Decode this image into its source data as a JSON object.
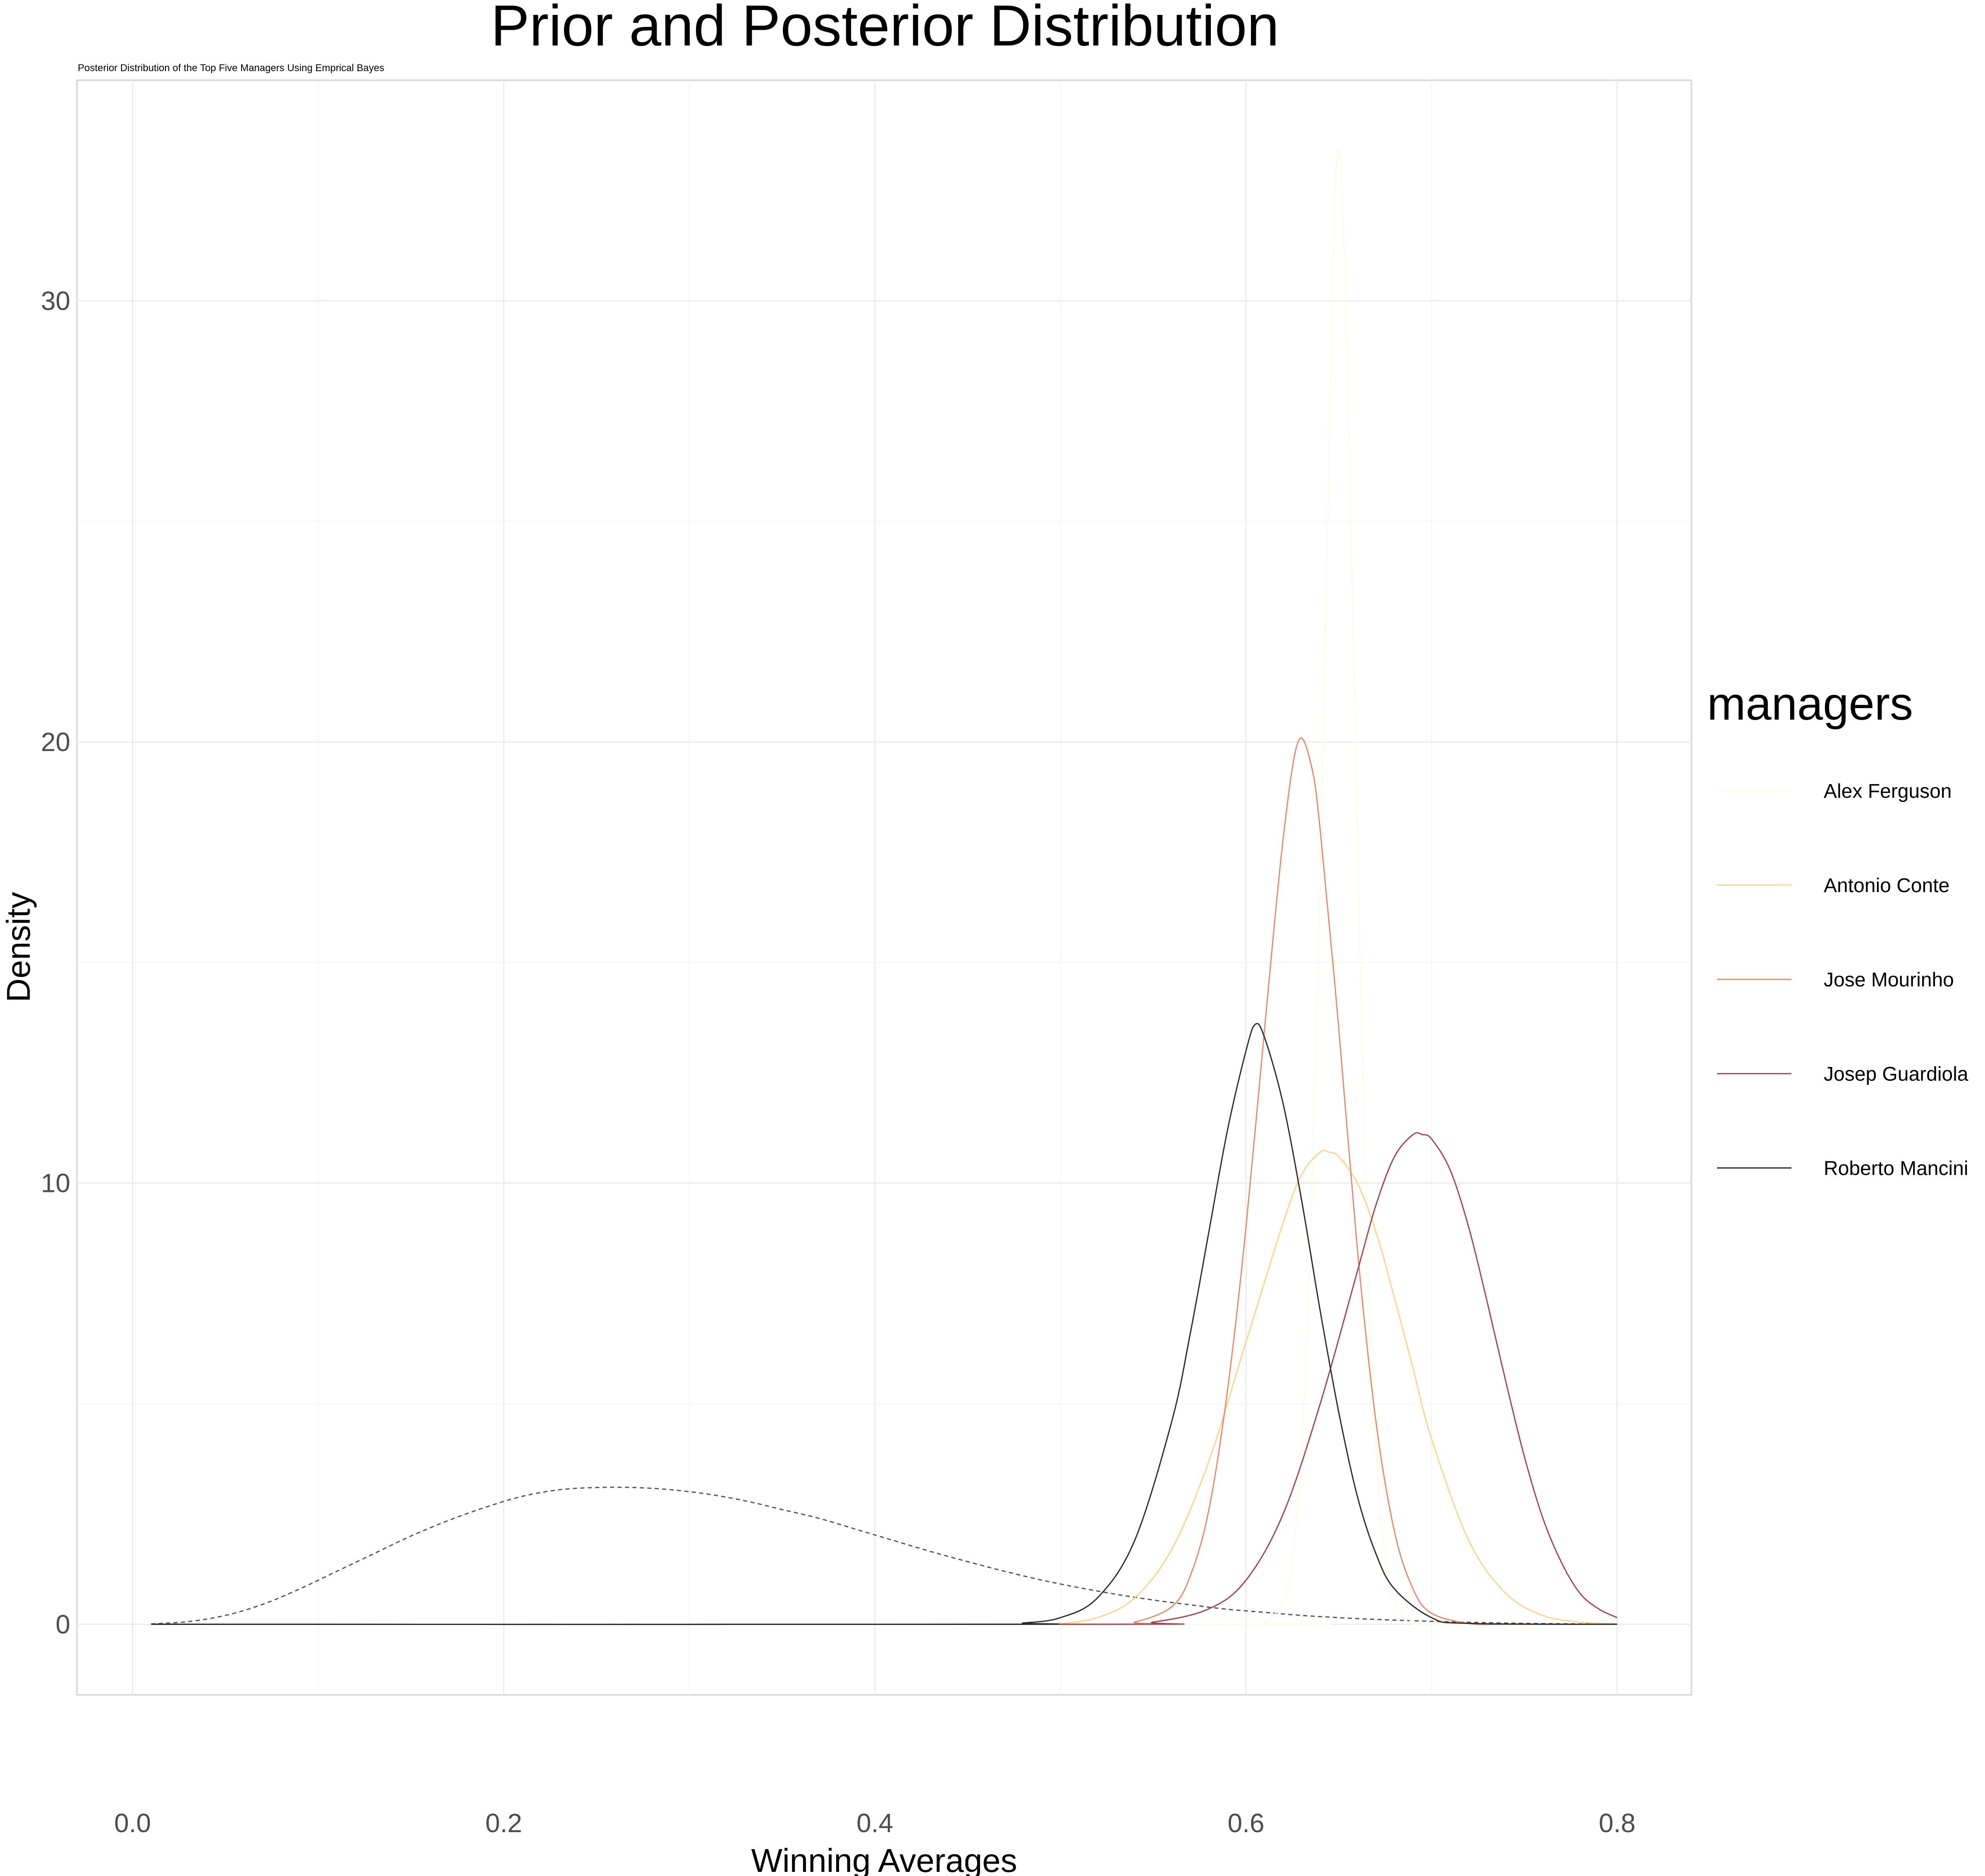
{
  "chart_data": {
    "type": "line",
    "title": "Prior and Posterior Distribution",
    "subtitle": "Posterior Distribution of the Top Five Managers Using Emprical Bayes",
    "xlabel": "Winning Averages",
    "ylabel": "Density",
    "xlim": [
      -0.03,
      0.84
    ],
    "ylim": [
      -1.6,
      35.0
    ],
    "x_ticks": [
      0.0,
      0.2,
      0.4,
      0.6,
      0.8
    ],
    "x_tick_labels": [
      "0.0",
      "0.2",
      "0.4",
      "0.6",
      "0.8"
    ],
    "y_ticks": [
      0,
      10,
      20,
      30
    ],
    "y_tick_labels": [
      "0",
      "10",
      "20",
      "30"
    ],
    "grid": true,
    "legend_title": "managers",
    "legend_position": "right",
    "prior": {
      "style": "dashed",
      "color": "#555555",
      "x": [
        0.01,
        0.03,
        0.05,
        0.07,
        0.09,
        0.11,
        0.13,
        0.15,
        0.17,
        0.19,
        0.21,
        0.23,
        0.25,
        0.27,
        0.29,
        0.31,
        0.33,
        0.35,
        0.37,
        0.39,
        0.41,
        0.43,
        0.45,
        0.47,
        0.49,
        0.51,
        0.53,
        0.55,
        0.57,
        0.59,
        0.61,
        0.63,
        0.65,
        0.67,
        0.69,
        0.71,
        0.73,
        0.75,
        0.77,
        0.79,
        0.8
      ],
      "y": [
        0.01,
        0.06,
        0.2,
        0.45,
        0.8,
        1.2,
        1.6,
        2.0,
        2.35,
        2.65,
        2.9,
        3.05,
        3.1,
        3.1,
        3.05,
        2.95,
        2.8,
        2.6,
        2.4,
        2.15,
        1.9,
        1.65,
        1.42,
        1.2,
        1.0,
        0.83,
        0.68,
        0.55,
        0.44,
        0.34,
        0.27,
        0.2,
        0.15,
        0.11,
        0.08,
        0.055,
        0.035,
        0.02,
        0.012,
        0.006,
        0.004
      ]
    },
    "series": [
      {
        "name": "Alex Ferguson",
        "color": "#fffbe6",
        "x": [
          0.6,
          0.61,
          0.62,
          0.625,
          0.63,
          0.635,
          0.64,
          0.645,
          0.648,
          0.651,
          0.655,
          0.66,
          0.665,
          0.67,
          0.675,
          0.68,
          0.69,
          0.7
        ],
        "y": [
          0.0,
          0.05,
          0.5,
          1.5,
          4.0,
          9.0,
          17.0,
          27.0,
          32.5,
          33.0,
          28.0,
          18.0,
          9.0,
          4.0,
          1.5,
          0.5,
          0.05,
          0.0
        ]
      },
      {
        "name": "Antonio Conte",
        "color": "#fdd48a",
        "x": [
          0.48,
          0.5,
          0.52,
          0.54,
          0.56,
          0.58,
          0.6,
          0.62,
          0.63,
          0.64,
          0.645,
          0.65,
          0.66,
          0.67,
          0.68,
          0.69,
          0.7,
          0.72,
          0.74,
          0.76,
          0.78,
          0.8
        ],
        "y": [
          0.0,
          0.02,
          0.15,
          0.6,
          1.7,
          3.7,
          6.4,
          9.1,
          10.2,
          10.7,
          10.7,
          10.6,
          10.0,
          8.9,
          7.4,
          5.8,
          4.2,
          1.9,
          0.7,
          0.2,
          0.05,
          0.01
        ]
      },
      {
        "name": "Jose Mourinho",
        "color": "#e8896a",
        "x": [
          0.52,
          0.54,
          0.56,
          0.57,
          0.58,
          0.59,
          0.6,
          0.61,
          0.62,
          0.628,
          0.635,
          0.64,
          0.65,
          0.66,
          0.67,
          0.68,
          0.69,
          0.7,
          0.72,
          0.74,
          0.8
        ],
        "y": [
          0.0,
          0.05,
          0.4,
          1.1,
          2.6,
          5.3,
          9.0,
          13.5,
          17.8,
          20.0,
          19.5,
          18.0,
          13.5,
          8.5,
          4.6,
          2.1,
          0.8,
          0.25,
          0.02,
          0.0,
          0.0
        ]
      },
      {
        "name": "Josep Guardiola",
        "color": "#a4424f",
        "x": [
          0.52,
          0.55,
          0.58,
          0.6,
          0.62,
          0.64,
          0.66,
          0.67,
          0.68,
          0.69,
          0.695,
          0.7,
          0.71,
          0.72,
          0.73,
          0.74,
          0.75,
          0.76,
          0.77,
          0.78,
          0.79,
          0.8
        ],
        "y": [
          0.0,
          0.05,
          0.35,
          1.0,
          2.5,
          5.0,
          8.0,
          9.5,
          10.6,
          11.1,
          11.1,
          11.0,
          10.3,
          9.0,
          7.3,
          5.5,
          3.8,
          2.4,
          1.4,
          0.7,
          0.35,
          0.15
        ]
      },
      {
        "name": "Roberto Mancini",
        "color": "#2b2b2b",
        "x": [
          0.46,
          0.48,
          0.5,
          0.52,
          0.54,
          0.56,
          0.57,
          0.58,
          0.59,
          0.6,
          0.605,
          0.61,
          0.62,
          0.63,
          0.64,
          0.65,
          0.66,
          0.67,
          0.68,
          0.7,
          0.72,
          0.8
        ],
        "y": [
          0.0,
          0.03,
          0.15,
          0.6,
          1.9,
          4.6,
          6.6,
          8.9,
          11.2,
          13.0,
          13.6,
          13.3,
          11.8,
          9.6,
          7.1,
          4.8,
          2.9,
          1.6,
          0.8,
          0.15,
          0.02,
          0.0
        ]
      }
    ]
  }
}
